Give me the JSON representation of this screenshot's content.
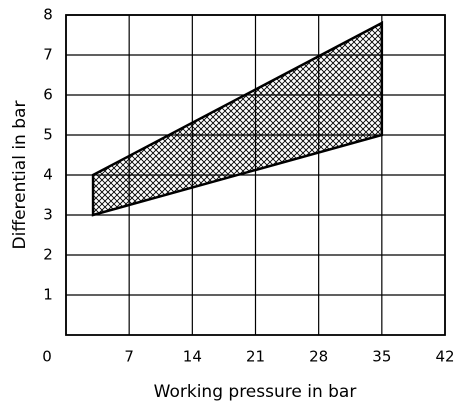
{
  "chart_data": {
    "type": "range-area",
    "x": [
      3,
      35
    ],
    "lower": [
      3,
      5
    ],
    "upper": [
      4,
      7.8
    ],
    "x_label": "Working pressure in bar",
    "y_label": "Differential in bar",
    "xlim": [
      0,
      42
    ],
    "xticks": [
      0,
      7,
      14,
      21,
      28,
      35,
      42
    ],
    "ylim": [
      0,
      8
    ],
    "yticks": [
      1,
      2,
      3,
      4,
      5,
      6,
      7,
      8
    ],
    "grid": true,
    "color": "#000000",
    "fill": "crosshatch"
  }
}
